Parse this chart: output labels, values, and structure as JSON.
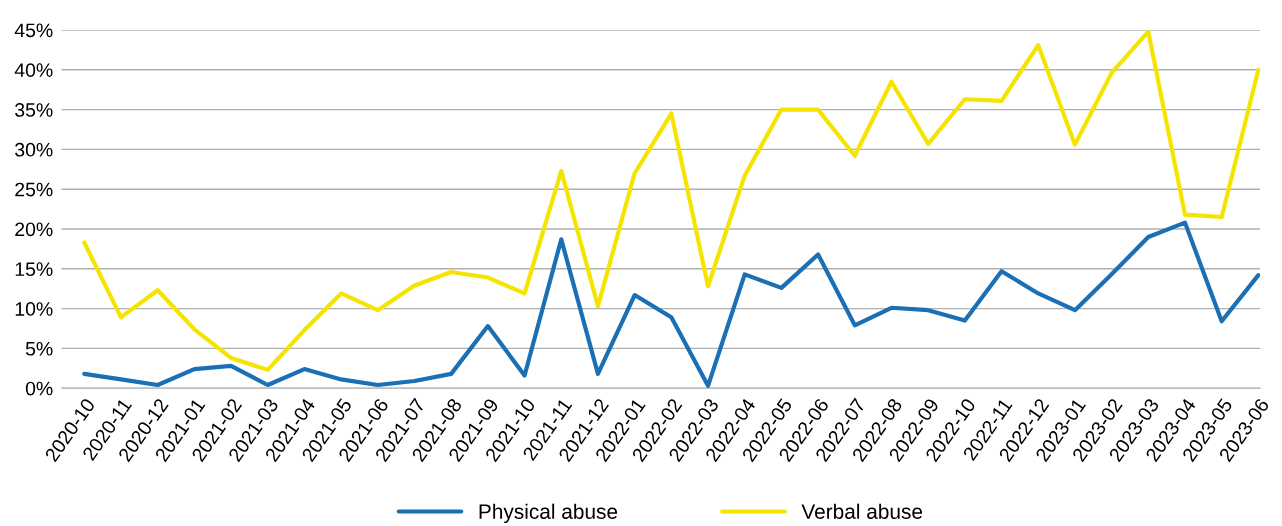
{
  "chart_data": {
    "type": "line",
    "categories": [
      "2020-10",
      "2020-11",
      "2020-12",
      "2021-01",
      "2021-02",
      "2021-03",
      "2021-04",
      "2021-05",
      "2021-06",
      "2021-07",
      "2021-08",
      "2021-09",
      "2021-10",
      "2021-11",
      "2021-12",
      "2022-01",
      "2022-02",
      "2022-03",
      "2022-04",
      "2022-05",
      "2022-06",
      "2022-07",
      "2022-08",
      "2022-09",
      "2022-10",
      "2022-11",
      "2022-12",
      "2023-01",
      "2023-02",
      "2023-03",
      "2023-04",
      "2023-05",
      "2023-06"
    ],
    "series": [
      {
        "name": "Physical abuse",
        "color": "#1a6fb5",
        "values": [
          1.8,
          1.1,
          0.4,
          2.4,
          2.8,
          0.4,
          2.4,
          1.1,
          0.4,
          0.9,
          1.8,
          7.8,
          1.6,
          18.7,
          1.8,
          11.7,
          8.9,
          0.3,
          14.3,
          12.6,
          16.8,
          7.9,
          10.1,
          9.8,
          8.5,
          14.7,
          11.9,
          9.8,
          14.3,
          19,
          20.8,
          8.4,
          14.2
        ]
      },
      {
        "name": "Verbal abuse",
        "color": "#f5e400",
        "values": [
          18.3,
          8.9,
          12.3,
          7.4,
          3.8,
          2.3,
          7.3,
          11.9,
          9.8,
          12.9,
          14.6,
          13.9,
          11.9,
          27.3,
          10.3,
          27,
          34.5,
          12.8,
          26.7,
          35,
          35,
          29.2,
          38.5,
          30.7,
          36.3,
          36.1,
          43.1,
          30.6,
          39.6,
          44.8,
          21.8,
          21.5,
          40
        ]
      }
    ],
    "ylim": [
      0,
      45
    ],
    "yticks": [
      {
        "value": 0,
        "label": "0%"
      },
      {
        "value": 5,
        "label": "5%"
      },
      {
        "value": 10,
        "label": "10%"
      },
      {
        "value": 15,
        "label": "15%"
      },
      {
        "value": 20,
        "label": "20%"
      },
      {
        "value": 25,
        "label": "25%"
      },
      {
        "value": 30,
        "label": "30%"
      },
      {
        "value": 35,
        "label": "35%"
      },
      {
        "value": 40,
        "label": "40%"
      },
      {
        "value": 45,
        "label": "45%"
      }
    ],
    "grid": "y",
    "legend": "bottom",
    "marker": "none",
    "line_style": "solid"
  }
}
